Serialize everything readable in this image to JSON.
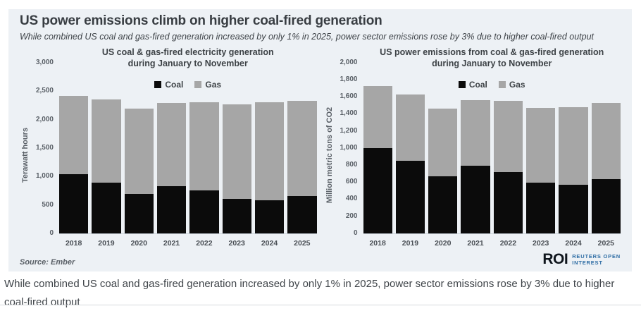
{
  "card": {
    "title": "US power emissions climb on higher coal-fired generation",
    "subtitle": "While combined US coal and gas-fired generation increased by only 1% in 2025, power sector emissions rose by 3% due to higher coal-fired output",
    "source": "Source:  Ember",
    "logo": {
      "roi": "ROI",
      "line1": "REUTERS OPEN",
      "line2": "INTEREST"
    }
  },
  "caption": {
    "text": "While combined US coal and gas-fired generation increased by only 1% in 2025, power sector emissions rose by 3% due to higher coal-fired output"
  },
  "colors": {
    "coal": "#0b0b0b",
    "gas": "#a6a6a6",
    "card_bg": "#edf1f5",
    "logo_blue": "#2e6da4",
    "logo_dark": "#10161d"
  },
  "chart_data": [
    {
      "type": "bar",
      "stacked": true,
      "title_line1": "US coal & gas-fired electricity generation",
      "title_line2": "during January to November",
      "ylabel": "Terawatt hours",
      "ylim": [
        0,
        3000
      ],
      "yticks": [
        3000,
        2500,
        2000,
        1500,
        1000,
        500,
        0
      ],
      "grid": false,
      "legend_position": "top-center",
      "categories": [
        "2018",
        "2019",
        "2020",
        "2021",
        "2022",
        "2023",
        "2024",
        "2025"
      ],
      "series": [
        {
          "name": "Coal",
          "values": [
            1040,
            895,
            695,
            830,
            755,
            610,
            585,
            660
          ]
        },
        {
          "name": "Gas",
          "values": [
            1370,
            1455,
            1495,
            1465,
            1545,
            1660,
            1725,
            1665
          ]
        }
      ]
    },
    {
      "type": "bar",
      "stacked": true,
      "title_line1": "US power emissions from coal & gas-fired generation",
      "title_line2": "during January to November",
      "ylabel": "Million metric tons of CO2",
      "ylim": [
        0,
        2000
      ],
      "yticks": [
        2000,
        1800,
        1600,
        1400,
        1200,
        1000,
        800,
        600,
        400,
        200,
        0
      ],
      "grid": false,
      "legend_position": "top-center",
      "categories": [
        "2018",
        "2019",
        "2020",
        "2021",
        "2022",
        "2023",
        "2024",
        "2025"
      ],
      "series": [
        {
          "name": "Coal",
          "values": [
            1000,
            850,
            665,
            795,
            720,
            590,
            565,
            635
          ]
        },
        {
          "name": "Gas",
          "values": [
            730,
            775,
            795,
            770,
            830,
            880,
            915,
            890
          ]
        }
      ]
    }
  ]
}
